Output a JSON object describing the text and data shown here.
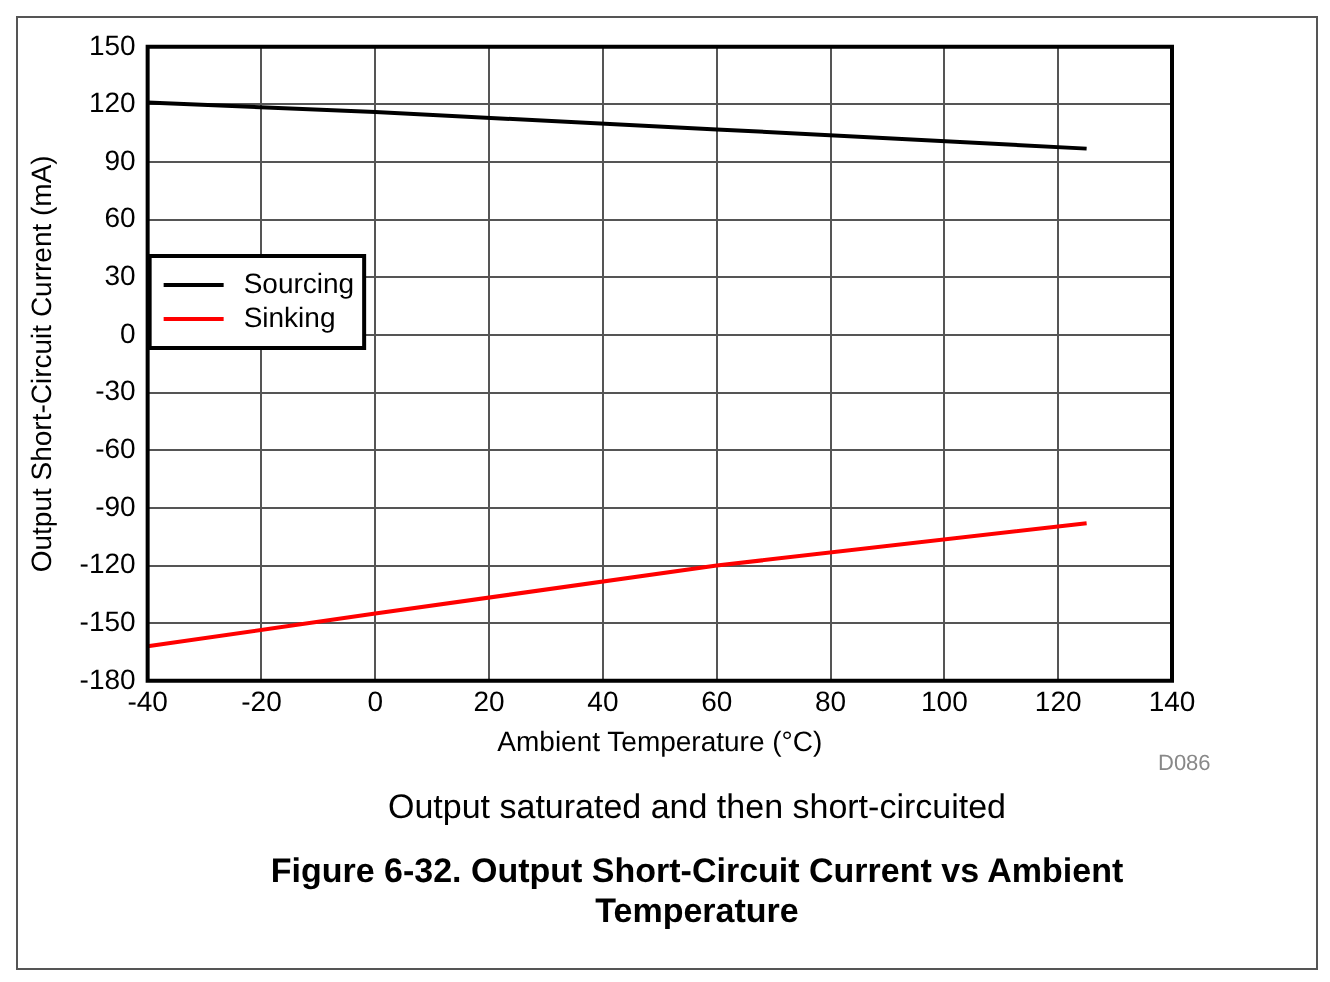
{
  "chart_data": {
    "type": "line",
    "title": "Figure 6-32. Output Short-Circuit Current vs Ambient Temperature",
    "xlabel": "Ambient Temperature (°C)",
    "ylabel": "Output Short-Circuit Current (mA)",
    "annotations": [
      "D086",
      "Output saturated and then short-circuited"
    ],
    "series": [
      {
        "name": "Sourcing",
        "color": "#000000",
        "x": [
          -40,
          0,
          60,
          125
        ],
        "values": [
          121,
          116,
          107,
          97
        ]
      },
      {
        "name": "Sinking",
        "color": "#ff0000",
        "x": [
          -40,
          0,
          60,
          125
        ],
        "values": [
          -162,
          -145,
          -120,
          -98
        ]
      }
    ],
    "xlim": [
      -40,
      140
    ],
    "xticks": [
      -40,
      -20,
      0,
      20,
      40,
      60,
      80,
      100,
      120,
      140
    ],
    "ylim": [
      -180,
      150
    ],
    "yticks": [
      -180,
      -150,
      -120,
      -90,
      -60,
      -30,
      0,
      30,
      60,
      90,
      120,
      150
    ],
    "grid": true,
    "legend": "left",
    "marker": "none",
    "line_style": "solid"
  }
}
